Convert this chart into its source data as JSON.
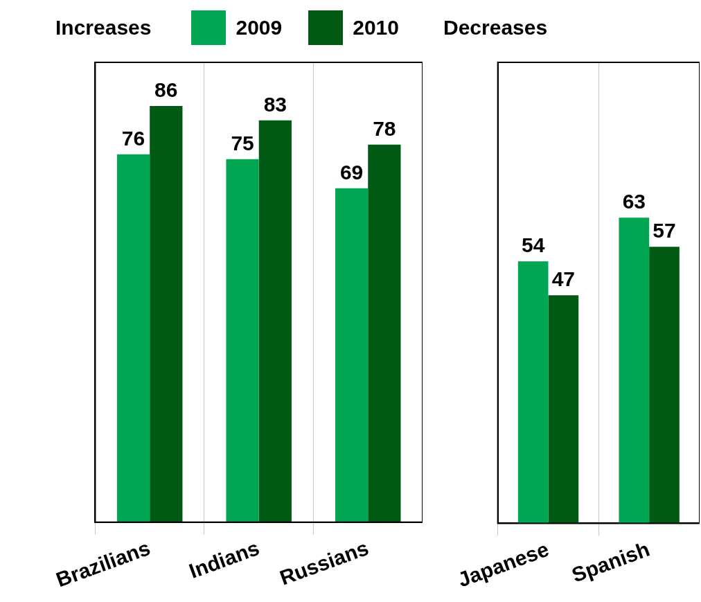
{
  "chart_data": [
    {
      "type": "bar",
      "title": "Increases",
      "categories": [
        "Brazilians",
        "Indians",
        "Russians"
      ],
      "series": [
        {
          "name": "2009",
          "color": "#00a651",
          "values": [
            76,
            75,
            69
          ]
        },
        {
          "name": "2010",
          "color": "#005a14",
          "values": [
            86,
            83,
            78
          ]
        }
      ],
      "ylim": [
        0,
        95
      ],
      "data_labels": true,
      "grid": "x",
      "legend": "top",
      "tick_labels": "x"
    },
    {
      "type": "bar",
      "title": "Decreases",
      "categories": [
        "Japanese",
        "Spanish"
      ],
      "series": [
        {
          "color": "#00a651",
          "values": [
            54,
            63
          ]
        },
        {
          "color": "#005a14",
          "values": [
            47,
            57
          ]
        }
      ],
      "ylim": [
        0,
        95
      ],
      "data_labels": true,
      "grid": "x",
      "tick_labels": "x"
    }
  ]
}
